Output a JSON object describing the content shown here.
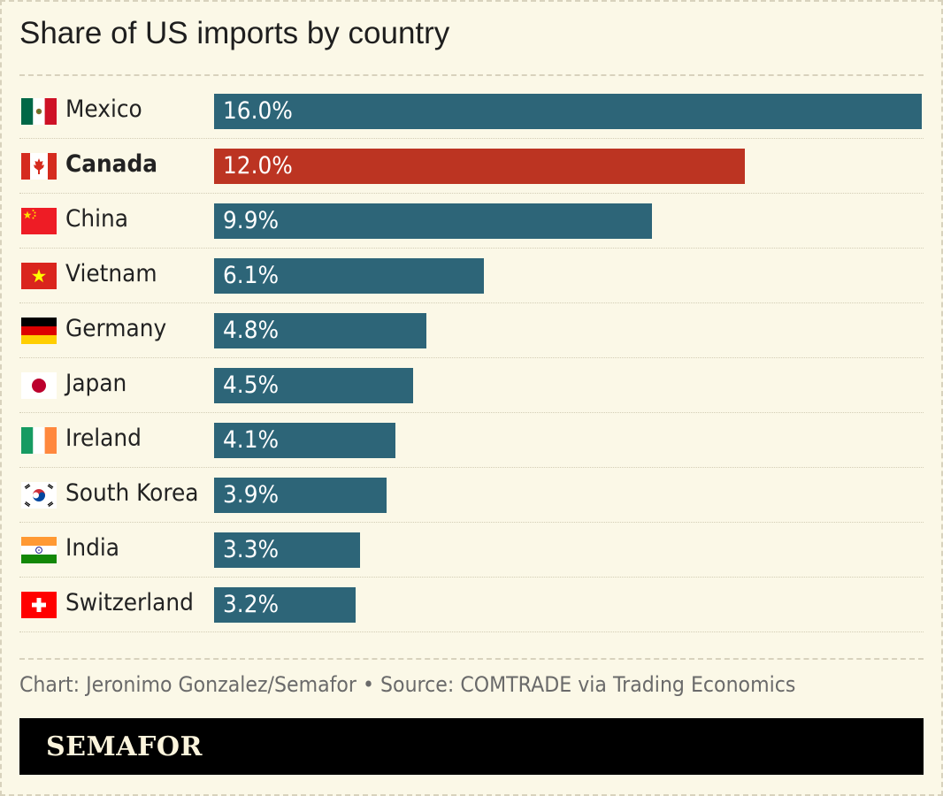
{
  "header": {
    "title": "Share of US imports by country"
  },
  "chart_data": {
    "type": "bar",
    "orientation": "horizontal",
    "title": "Share of US imports by country",
    "categories": [
      "Mexico",
      "Canada",
      "China",
      "Vietnam",
      "Germany",
      "Japan",
      "Ireland",
      "South Korea",
      "India",
      "Switzerland"
    ],
    "values": [
      16.0,
      12.0,
      9.9,
      6.1,
      4.8,
      4.5,
      4.1,
      3.9,
      3.3,
      3.2
    ],
    "value_labels": [
      "16.0%",
      "12.0%",
      "9.9%",
      "6.1%",
      "4.8%",
      "4.5%",
      "4.1%",
      "3.9%",
      "3.3%",
      "3.2%"
    ],
    "flags": [
      "mexico-flag-icon",
      "canada-flag-icon",
      "china-flag-icon",
      "vietnam-flag-icon",
      "germany-flag-icon",
      "japan-flag-icon",
      "ireland-flag-icon",
      "south-korea-flag-icon",
      "india-flag-icon",
      "switzerland-flag-icon"
    ],
    "highlight": "Canada",
    "xlim": [
      0,
      16.0
    ],
    "grid": false,
    "colors": {
      "default": "#2d6578",
      "highlight": "#bc3422",
      "background": "#fbf8e7"
    }
  },
  "footer": {
    "credit": "Chart: Jeronimo Gonzalez/Semafor • Source: COMTRADE via Trading Economics",
    "brand": "SEMAFOR"
  }
}
